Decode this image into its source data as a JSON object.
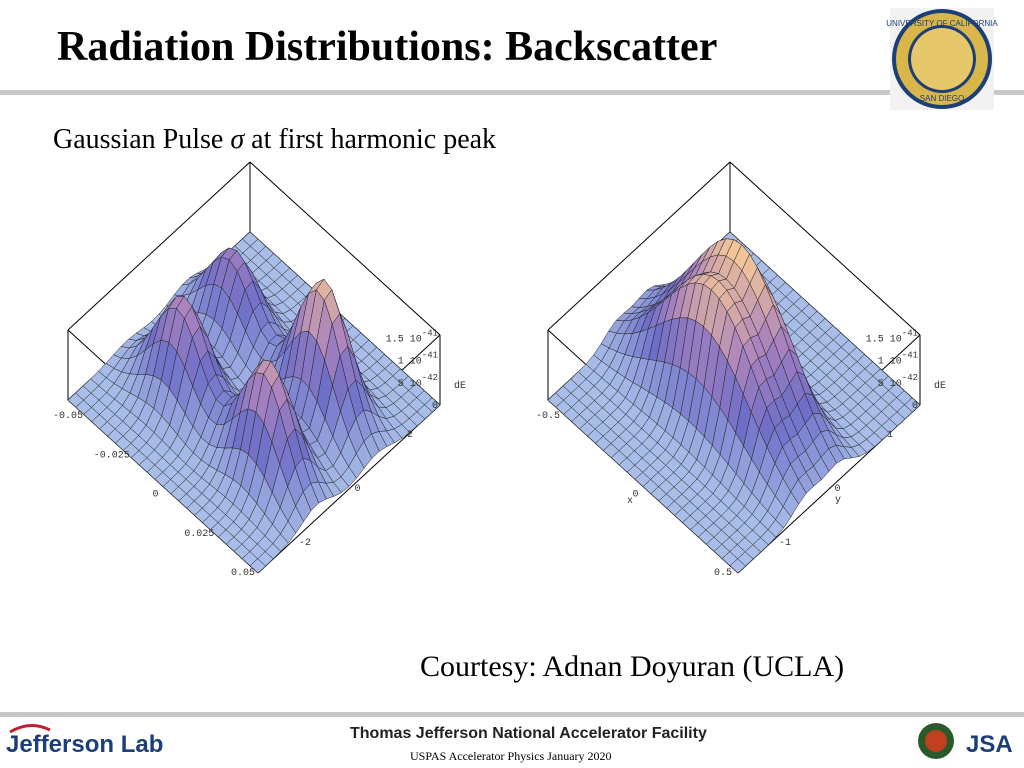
{
  "header": {
    "title": "Radiation Distributions: Backscatter",
    "logo": {
      "top": "UNIVERSITY OF CALIFORNIA",
      "bottom": "SAN DIEGO"
    }
  },
  "subtitle": {
    "before": "Gaussian Pulse ",
    "symbol": "σ",
    "after": " at first harmonic peak"
  },
  "plots": [
    {
      "z_ticks": [
        {
          "base": "1.5 10",
          "exp": "-41"
        },
        {
          "base": "1 10",
          "exp": "-41"
        },
        {
          "base": "5 10",
          "exp": "-42"
        },
        {
          "base": "0",
          "exp": ""
        }
      ],
      "z_label": "dE",
      "x_ticks": [
        "-0.05",
        "-0.025",
        "0",
        "0.025",
        "0.05"
      ],
      "y_ticks": [
        "2",
        "0",
        "-2"
      ]
    },
    {
      "z_ticks": [
        {
          "base": "1.5 10",
          "exp": "-41"
        },
        {
          "base": "1 10",
          "exp": "-41"
        },
        {
          "base": "5 10",
          "exp": "-42"
        },
        {
          "base": "0",
          "exp": ""
        }
      ],
      "z_label": "dE",
      "x_ticks": [
        "-0.5",
        "0",
        "0.5"
      ],
      "x_label": "x",
      "y_ticks": [
        "1",
        "0",
        "-1"
      ],
      "y_label": "y"
    }
  ],
  "courtesy": "Courtesy: Adnan Doyuran (UCLA)",
  "footer": {
    "lab": "Jefferson Lab",
    "facility": "Thomas Jefferson National Accelerator Facility",
    "course": "USPAS Accelerator Physics January 2020"
  }
}
